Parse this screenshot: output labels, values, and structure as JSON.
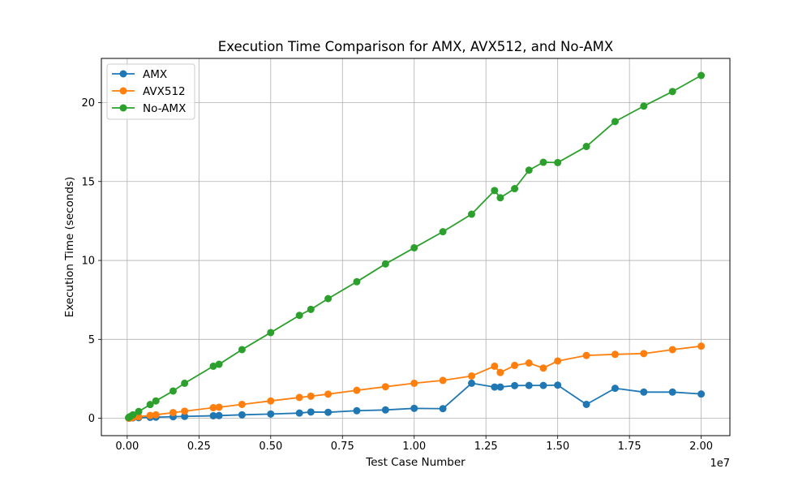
{
  "chart_data": {
    "type": "line",
    "title": "Execution Time Comparison for AMX, AVX512, and No-AMX",
    "xlabel": "Test Case Number",
    "ylabel": "Execution Time (seconds)",
    "x_offset_label": "1e7",
    "xlim": [
      -900000,
      20999999
    ],
    "ylim": [
      -1.1,
      22.8
    ],
    "xticks": [
      0,
      2500000,
      5000000,
      7500000,
      10000000,
      12500000,
      15000000,
      17500000,
      20000000
    ],
    "xtick_labels": [
      "0.00",
      "0.25",
      "0.50",
      "0.75",
      "1.00",
      "1.25",
      "1.50",
      "1.75",
      "2.00"
    ],
    "yticks": [
      0,
      5,
      10,
      15,
      20
    ],
    "ytick_labels": [
      "0",
      "5",
      "10",
      "15",
      "20"
    ],
    "grid": true,
    "legend_position": "top-left",
    "series": [
      {
        "name": "AMX",
        "color": "#1f77b4",
        "points": [
          [
            50000,
            0.01
          ],
          [
            100000,
            0.02
          ],
          [
            200000,
            0.03
          ],
          [
            400000,
            0.04
          ],
          [
            800000,
            0.06
          ],
          [
            1000000,
            0.07
          ],
          [
            1600000,
            0.1
          ],
          [
            2000000,
            0.12
          ],
          [
            3000000,
            0.16
          ],
          [
            3200000,
            0.17
          ],
          [
            4000000,
            0.22
          ],
          [
            5000000,
            0.27
          ],
          [
            6000000,
            0.33
          ],
          [
            6400000,
            0.4
          ],
          [
            7000000,
            0.38
          ],
          [
            8000000,
            0.48
          ],
          [
            9000000,
            0.53
          ],
          [
            10000000,
            0.63
          ],
          [
            11000000,
            0.61
          ],
          [
            12000000,
            2.22
          ],
          [
            12800000,
            1.98
          ],
          [
            13000000,
            1.98
          ],
          [
            13500000,
            2.07
          ],
          [
            14000000,
            2.08
          ],
          [
            14500000,
            2.08
          ],
          [
            15000000,
            2.1
          ],
          [
            16000000,
            0.88
          ],
          [
            17000000,
            1.9
          ],
          [
            18000000,
            1.66
          ],
          [
            19000000,
            1.66
          ],
          [
            20000000,
            1.54
          ]
        ]
      },
      {
        "name": "AVX512",
        "color": "#ff7f0e",
        "points": [
          [
            50000,
            0.01
          ],
          [
            100000,
            0.02
          ],
          [
            200000,
            0.05
          ],
          [
            400000,
            0.1
          ],
          [
            800000,
            0.18
          ],
          [
            1000000,
            0.22
          ],
          [
            1600000,
            0.36
          ],
          [
            2000000,
            0.45
          ],
          [
            3000000,
            0.67
          ],
          [
            3200000,
            0.7
          ],
          [
            4000000,
            0.88
          ],
          [
            5000000,
            1.1
          ],
          [
            6000000,
            1.32
          ],
          [
            6400000,
            1.4
          ],
          [
            7000000,
            1.53
          ],
          [
            8000000,
            1.77
          ],
          [
            9000000,
            2.0
          ],
          [
            10000000,
            2.22
          ],
          [
            11000000,
            2.4
          ],
          [
            12000000,
            2.68
          ],
          [
            12800000,
            3.3
          ],
          [
            13000000,
            2.9
          ],
          [
            13500000,
            3.35
          ],
          [
            14000000,
            3.5
          ],
          [
            14500000,
            3.18
          ],
          [
            15000000,
            3.63
          ],
          [
            16000000,
            3.98
          ],
          [
            17000000,
            4.05
          ],
          [
            18000000,
            4.1
          ],
          [
            19000000,
            4.35
          ],
          [
            20000000,
            4.57
          ]
        ]
      },
      {
        "name": "No-AMX",
        "color": "#2ca02c",
        "points": [
          [
            50000,
            0.05
          ],
          [
            100000,
            0.11
          ],
          [
            200000,
            0.22
          ],
          [
            400000,
            0.43
          ],
          [
            800000,
            0.87
          ],
          [
            1000000,
            1.1
          ],
          [
            1600000,
            1.73
          ],
          [
            2000000,
            2.22
          ],
          [
            3000000,
            3.3
          ],
          [
            3200000,
            3.42
          ],
          [
            4000000,
            4.35
          ],
          [
            5000000,
            5.43
          ],
          [
            6000000,
            6.52
          ],
          [
            6400000,
            6.9
          ],
          [
            7000000,
            7.58
          ],
          [
            8000000,
            8.65
          ],
          [
            9000000,
            9.78
          ],
          [
            10000000,
            10.8
          ],
          [
            11000000,
            11.82
          ],
          [
            12000000,
            12.93
          ],
          [
            12800000,
            14.43
          ],
          [
            13000000,
            13.97
          ],
          [
            13500000,
            14.55
          ],
          [
            14000000,
            15.72
          ],
          [
            14500000,
            16.22
          ],
          [
            15000000,
            16.2
          ],
          [
            16000000,
            17.22
          ],
          [
            17000000,
            18.8
          ],
          [
            18000000,
            19.78
          ],
          [
            19000000,
            20.7
          ],
          [
            20000000,
            21.72
          ]
        ]
      }
    ]
  }
}
